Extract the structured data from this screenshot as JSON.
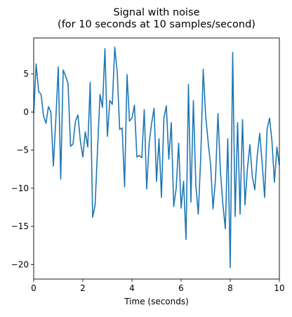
{
  "chart_data": {
    "type": "line",
    "title_lines": [
      "Signal with noise",
      "(for 10 seconds at 10 samples/second)"
    ],
    "xlabel": "Time (seconds)",
    "ylabel": "",
    "xlim": [
      0,
      10
    ],
    "ylim": [
      -21.9,
      9.7
    ],
    "x_ticks": [
      0,
      2,
      4,
      6,
      8,
      10
    ],
    "x_tick_labels": [
      "0",
      "2",
      "4",
      "6",
      "8",
      "10"
    ],
    "y_ticks": [
      5,
      0,
      -5,
      -10,
      -15,
      -20
    ],
    "y_tick_labels": [
      "5",
      "0",
      "−5",
      "−10",
      "−15",
      "−20"
    ],
    "grid": false,
    "legend": false,
    "line_color": "#1f77b4",
    "series": [
      {
        "x": [
          0.0,
          0.1,
          0.2,
          0.3,
          0.4,
          0.5,
          0.6,
          0.7,
          0.8,
          0.9,
          1.0,
          1.1,
          1.2,
          1.3,
          1.4,
          1.5,
          1.6,
          1.7,
          1.8,
          1.9,
          2.0,
          2.1,
          2.2,
          2.3,
          2.4,
          2.5,
          2.6,
          2.7,
          2.8,
          2.9,
          3.0,
          3.1,
          3.2,
          3.3,
          3.4,
          3.5,
          3.6,
          3.7,
          3.8,
          3.9,
          4.0,
          4.1,
          4.2,
          4.3,
          4.4,
          4.5,
          4.6,
          4.7,
          4.8,
          4.9,
          5.0,
          5.1,
          5.2,
          5.3,
          5.4,
          5.5,
          5.6,
          5.7,
          5.8,
          5.9,
          6.0,
          6.1,
          6.2,
          6.3,
          6.4,
          6.5,
          6.6,
          6.7,
          6.8,
          6.9,
          7.0,
          7.1,
          7.2,
          7.3,
          7.4,
          7.5,
          7.6,
          7.7,
          7.8,
          7.9,
          8.0,
          8.1,
          8.2,
          8.3,
          8.4,
          8.5,
          8.6,
          8.7,
          8.8,
          8.9,
          9.0,
          9.1,
          9.2,
          9.3,
          9.4,
          9.5,
          9.6,
          9.7,
          9.8,
          9.9,
          10.0
        ],
        "y": [
          -0.2,
          6.3,
          2.7,
          2.3,
          -0.5,
          -1.5,
          0.7,
          0.0,
          -7.1,
          -1.0,
          5.9,
          -8.8,
          5.5,
          4.7,
          3.7,
          -4.5,
          -4.2,
          -1.2,
          -0.4,
          -3.8,
          -5.9,
          -2.6,
          -4.6,
          3.9,
          -13.8,
          -12.2,
          -4.8,
          2.3,
          0.6,
          8.3,
          -3.2,
          1.5,
          1.0,
          8.5,
          5.2,
          -2.3,
          -2.1,
          -9.8,
          4.9,
          -1.2,
          -0.8,
          0.9,
          -5.9,
          -5.7,
          -6.0,
          0.3,
          -10.1,
          -4.1,
          -1.5,
          0.5,
          -9.1,
          -3.5,
          -11.2,
          -0.8,
          0.8,
          -6.2,
          -1.4,
          -12.4,
          -10.0,
          -4.1,
          -12.6,
          -9.1,
          -16.7,
          3.6,
          -11.8,
          1.5,
          -9.6,
          -13.4,
          -5.9,
          5.6,
          -0.5,
          -3.9,
          -6.9,
          -12.7,
          -8.8,
          -0.2,
          -7.7,
          -12.1,
          -15.3,
          -3.5,
          -20.4,
          7.8,
          -13.7,
          -1.4,
          -13.4,
          -1.0,
          -12.2,
          -7.4,
          -4.3,
          -8.5,
          -10.2,
          -5.7,
          -2.8,
          -6.7,
          -11.2,
          -2.3,
          -0.8,
          -3.9,
          -9.2,
          -4.6,
          -7.0
        ]
      }
    ]
  }
}
